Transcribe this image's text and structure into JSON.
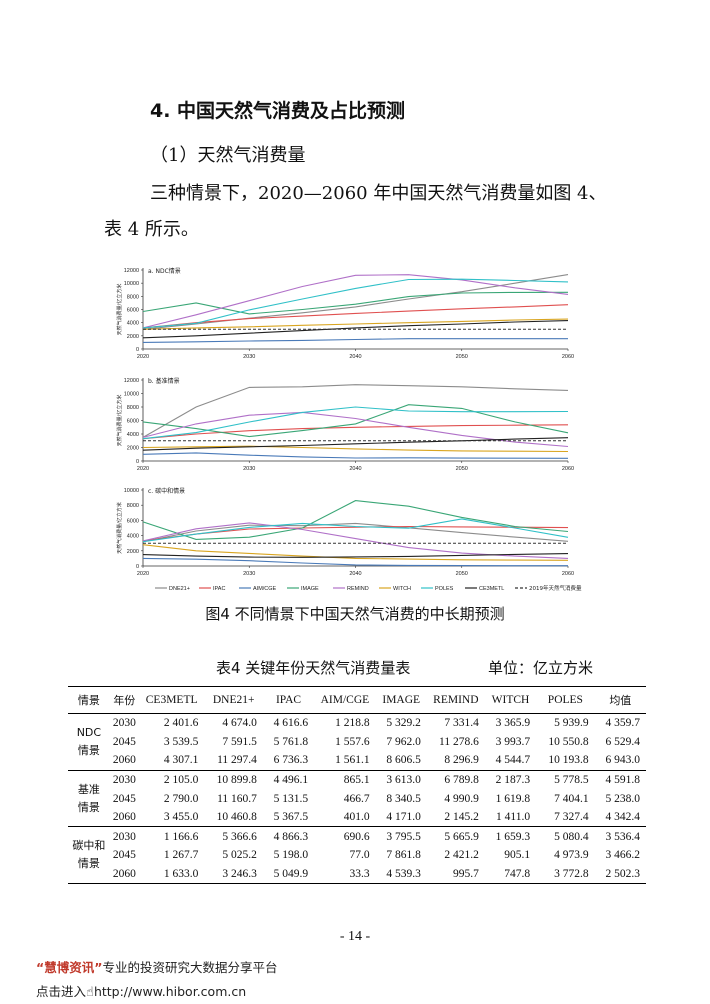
{
  "section_title": "4. 中国天然气消费及占比预测",
  "subsection_title": "（1）天然气消费量",
  "paragraph": "三种情景下，2020—2060 年中国天然气消费量如图 4、表 4 所示。",
  "figure_caption": "图4  不同情景下中国天然气消费的中长期预测",
  "table_title": "表4  关键年份天然气消费量表",
  "table_unit": "单位：亿立方米",
  "table": {
    "headers": [
      "情景",
      "年份",
      "CE3METL",
      "DNE21+",
      "IPAC",
      "AIM/CGE",
      "IMAGE",
      "REMIND",
      "WITCH",
      "POLES",
      "均值"
    ],
    "groups": [
      {
        "scenario": "NDC\n情景",
        "rows": [
          {
            "year": "2030",
            "values": [
              "2 401.6",
              "4 674.0",
              "4 616.6",
              "1 218.8",
              "5 329.2",
              "7 331.4",
              "3 365.9",
              "5 939.9",
              "4 359.7"
            ]
          },
          {
            "year": "2045",
            "values": [
              "3 539.5",
              "7 591.5",
              "5 761.8",
              "1 557.6",
              "7 962.0",
              "11 278.6",
              "3 993.7",
              "10 550.8",
              "6 529.4"
            ]
          },
          {
            "year": "2060",
            "values": [
              "4 307.1",
              "11 297.4",
              "6 736.3",
              "1 561.1",
              "8 606.5",
              "8 296.9",
              "4 544.7",
              "10 193.8",
              "6 943.0"
            ]
          }
        ]
      },
      {
        "scenario": "基准\n情景",
        "rows": [
          {
            "year": "2030",
            "values": [
              "2 105.0",
              "10 899.8",
              "4 496.1",
              "865.1",
              "3 613.0",
              "6 789.8",
              "2 187.3",
              "5 778.5",
              "4 591.8"
            ]
          },
          {
            "year": "2045",
            "values": [
              "2 790.0",
              "11 160.7",
              "5 131.5",
              "466.7",
              "8 340.5",
              "4 990.9",
              "1 619.8",
              "7 404.1",
              "5 238.0"
            ]
          },
          {
            "year": "2060",
            "values": [
              "3 455.0",
              "10 460.8",
              "5 367.5",
              "401.0",
              "4 171.0",
              "2 145.2",
              "1 411.0",
              "7 327.4",
              "4 342.4"
            ]
          }
        ]
      },
      {
        "scenario": "碳中和\n情景",
        "rows": [
          {
            "year": "2030",
            "values": [
              "1 166.6",
              "5 366.6",
              "4 866.3",
              "690.6",
              "3 795.5",
              "5 665.9",
              "1 659.3",
              "5 080.4",
              "3 536.4"
            ]
          },
          {
            "year": "2045",
            "values": [
              "1 267.7",
              "5 025.2",
              "5 198.0",
              "77.0",
              "7 861.8",
              "2 421.2",
              "905.1",
              "4 973.9",
              "3 466.2"
            ]
          },
          {
            "year": "2060",
            "values": [
              "1 633.0",
              "3 246.3",
              "5 049.9",
              "33.3",
              "4 539.3",
              "995.7",
              "747.8",
              "3 772.8",
              "2 502.3"
            ]
          }
        ]
      }
    ]
  },
  "page_number": "- 14 -",
  "watermark": {
    "brand": "“慧博资讯”",
    "slogan": "专业的投资研究大数据分享平台",
    "link_prefix": "点击进入",
    "url": "http://www.hibor.com.cn"
  },
  "colors": {
    "DNE21+": "#8c8c8c",
    "IPAC": "#e05050",
    "AIM/CGE": "#4a7ab8",
    "IMAGE": "#3aa676",
    "REMIND": "#b070c8",
    "WITCH": "#d9a520",
    "POLES": "#30c0c8",
    "CE3METL": "#222222",
    "ref": "#333333"
  },
  "chart_data": [
    {
      "type": "line",
      "title": "a. NDC情景",
      "ylabel": "天然气消费量/亿立方米",
      "x_ticks": [
        "2020",
        "2030",
        "2040",
        "2050",
        "2060"
      ],
      "y_ticks": [
        "0",
        "2000",
        "4000",
        "6000",
        "8000",
        "10000",
        "12000"
      ],
      "xlim": [
        2020,
        2060
      ],
      "ylim": [
        0,
        12000
      ],
      "x": [
        2020,
        2025,
        2030,
        2035,
        2040,
        2045,
        2050,
        2055,
        2060
      ],
      "series": [
        {
          "name": "DNE21+",
          "values": [
            3000,
            3800,
            4674,
            5500,
            6400,
            7592,
            8700,
            10000,
            11297
          ]
        },
        {
          "name": "IPAC",
          "values": [
            3200,
            4000,
            4617,
            5000,
            5400,
            5762,
            6100,
            6400,
            6736
          ]
        },
        {
          "name": "AIM/CGE",
          "values": [
            1000,
            1100,
            1219,
            1300,
            1450,
            1558,
            1560,
            1560,
            1561
          ]
        },
        {
          "name": "IMAGE",
          "values": [
            5700,
            7000,
            5329,
            6000,
            6800,
            7962,
            8500,
            8600,
            8607
          ]
        },
        {
          "name": "REMIND",
          "values": [
            3200,
            5200,
            7331,
            9500,
            11200,
            11279,
            10500,
            9300,
            8297
          ]
        },
        {
          "name": "WITCH",
          "values": [
            3000,
            3200,
            3366,
            3600,
            3800,
            3994,
            4200,
            4400,
            4545
          ]
        },
        {
          "name": "POLES",
          "values": [
            3200,
            3900,
            5940,
            7600,
            9200,
            10551,
            10600,
            10400,
            10194
          ]
        },
        {
          "name": "CE3METL",
          "values": [
            1700,
            2000,
            2402,
            2800,
            3200,
            3540,
            3800,
            4100,
            4307
          ]
        },
        {
          "name": "2019年天然气消费量",
          "values": [
            3000,
            3000,
            3000,
            3000,
            3000,
            3000,
            3000,
            3000,
            3000
          ]
        }
      ]
    },
    {
      "type": "line",
      "title": "b. 基准情景",
      "ylabel": "天然气消费量/亿立方米",
      "x_ticks": [
        "2020",
        "2030",
        "2040",
        "2050",
        "2060"
      ],
      "y_ticks": [
        "0",
        "2000",
        "4000",
        "6000",
        "8000",
        "10000",
        "12000"
      ],
      "xlim": [
        2020,
        2060
      ],
      "ylim": [
        0,
        12000
      ],
      "x": [
        2020,
        2025,
        2030,
        2035,
        2040,
        2045,
        2050,
        2055,
        2060
      ],
      "series": [
        {
          "name": "DNE21+",
          "values": [
            3500,
            8000,
            10900,
            11000,
            11300,
            11161,
            11000,
            10700,
            10461
          ]
        },
        {
          "name": "IPAC",
          "values": [
            3300,
            4000,
            4496,
            4800,
            5000,
            5132,
            5250,
            5300,
            5368
          ]
        },
        {
          "name": "AIM/CGE",
          "values": [
            1000,
            1200,
            865,
            600,
            450,
            467,
            430,
            410,
            401
          ]
        },
        {
          "name": "IMAGE",
          "values": [
            5800,
            4800,
            3613,
            4500,
            5500,
            8341,
            7800,
            5800,
            4171
          ]
        },
        {
          "name": "REMIND",
          "values": [
            3500,
            5500,
            6790,
            7200,
            6300,
            4991,
            3800,
            2800,
            2145
          ]
        },
        {
          "name": "WITCH",
          "values": [
            2000,
            2100,
            2187,
            2000,
            1800,
            1620,
            1500,
            1450,
            1411
          ]
        },
        {
          "name": "POLES",
          "values": [
            3300,
            4200,
            5779,
            7200,
            8000,
            7404,
            7300,
            7300,
            7327
          ]
        },
        {
          "name": "CE3METL",
          "values": [
            1600,
            1900,
            2105,
            2300,
            2550,
            2790,
            3000,
            3250,
            3455
          ]
        },
        {
          "name": "2019年天然气消费量",
          "values": [
            3000,
            3000,
            3000,
            3000,
            3000,
            3000,
            3000,
            3000,
            3000
          ]
        }
      ]
    },
    {
      "type": "line",
      "title": "c. 碳中和情景",
      "ylabel": "天然气消费量/亿立方米",
      "x_ticks": [
        "2020",
        "2030",
        "2040",
        "2050",
        "2060"
      ],
      "y_ticks": [
        "0",
        "2000",
        "4000",
        "6000",
        "8000",
        "10000"
      ],
      "xlim": [
        2020,
        2060
      ],
      "ylim": [
        0,
        10000
      ],
      "x": [
        2020,
        2025,
        2030,
        2035,
        2040,
        2045,
        2050,
        2055,
        2060
      ],
      "series": [
        {
          "name": "DNE21+",
          "values": [
            3200,
            4600,
            5367,
            5300,
            5600,
            5025,
            4400,
            3800,
            3246
          ]
        },
        {
          "name": "IPAC",
          "values": [
            3300,
            4200,
            4866,
            5000,
            5100,
            5198,
            5150,
            5100,
            5050
          ]
        },
        {
          "name": "AIM/CGE",
          "values": [
            1000,
            900,
            691,
            400,
            150,
            77,
            50,
            40,
            33
          ]
        },
        {
          "name": "IMAGE",
          "values": [
            5800,
            3500,
            3796,
            5000,
            8600,
            7862,
            6400,
            5200,
            4539
          ]
        },
        {
          "name": "REMIND",
          "values": [
            3300,
            4900,
            5666,
            4800,
            3600,
            2421,
            1700,
            1300,
            996
          ]
        },
        {
          "name": "WITCH",
          "values": [
            2800,
            2000,
            1659,
            1300,
            1000,
            905,
            820,
            780,
            748
          ]
        },
        {
          "name": "POLES",
          "values": [
            3200,
            4200,
            5080,
            5600,
            5200,
            4974,
            6200,
            5000,
            3773
          ]
        },
        {
          "name": "CE3METL",
          "values": [
            1500,
            1300,
            1167,
            1150,
            1200,
            1268,
            1400,
            1520,
            1633
          ]
        },
        {
          "name": "2019年天然气消费量",
          "values": [
            3000,
            3000,
            3000,
            3000,
            3000,
            3000,
            3000,
            3000,
            3000
          ]
        }
      ]
    }
  ],
  "legend": [
    "DNE21+",
    "IPAC",
    "AIM/CGE",
    "IMAGE",
    "REMIND",
    "WITCH",
    "POLES",
    "CE3METL",
    "2019年天然气消费量"
  ]
}
